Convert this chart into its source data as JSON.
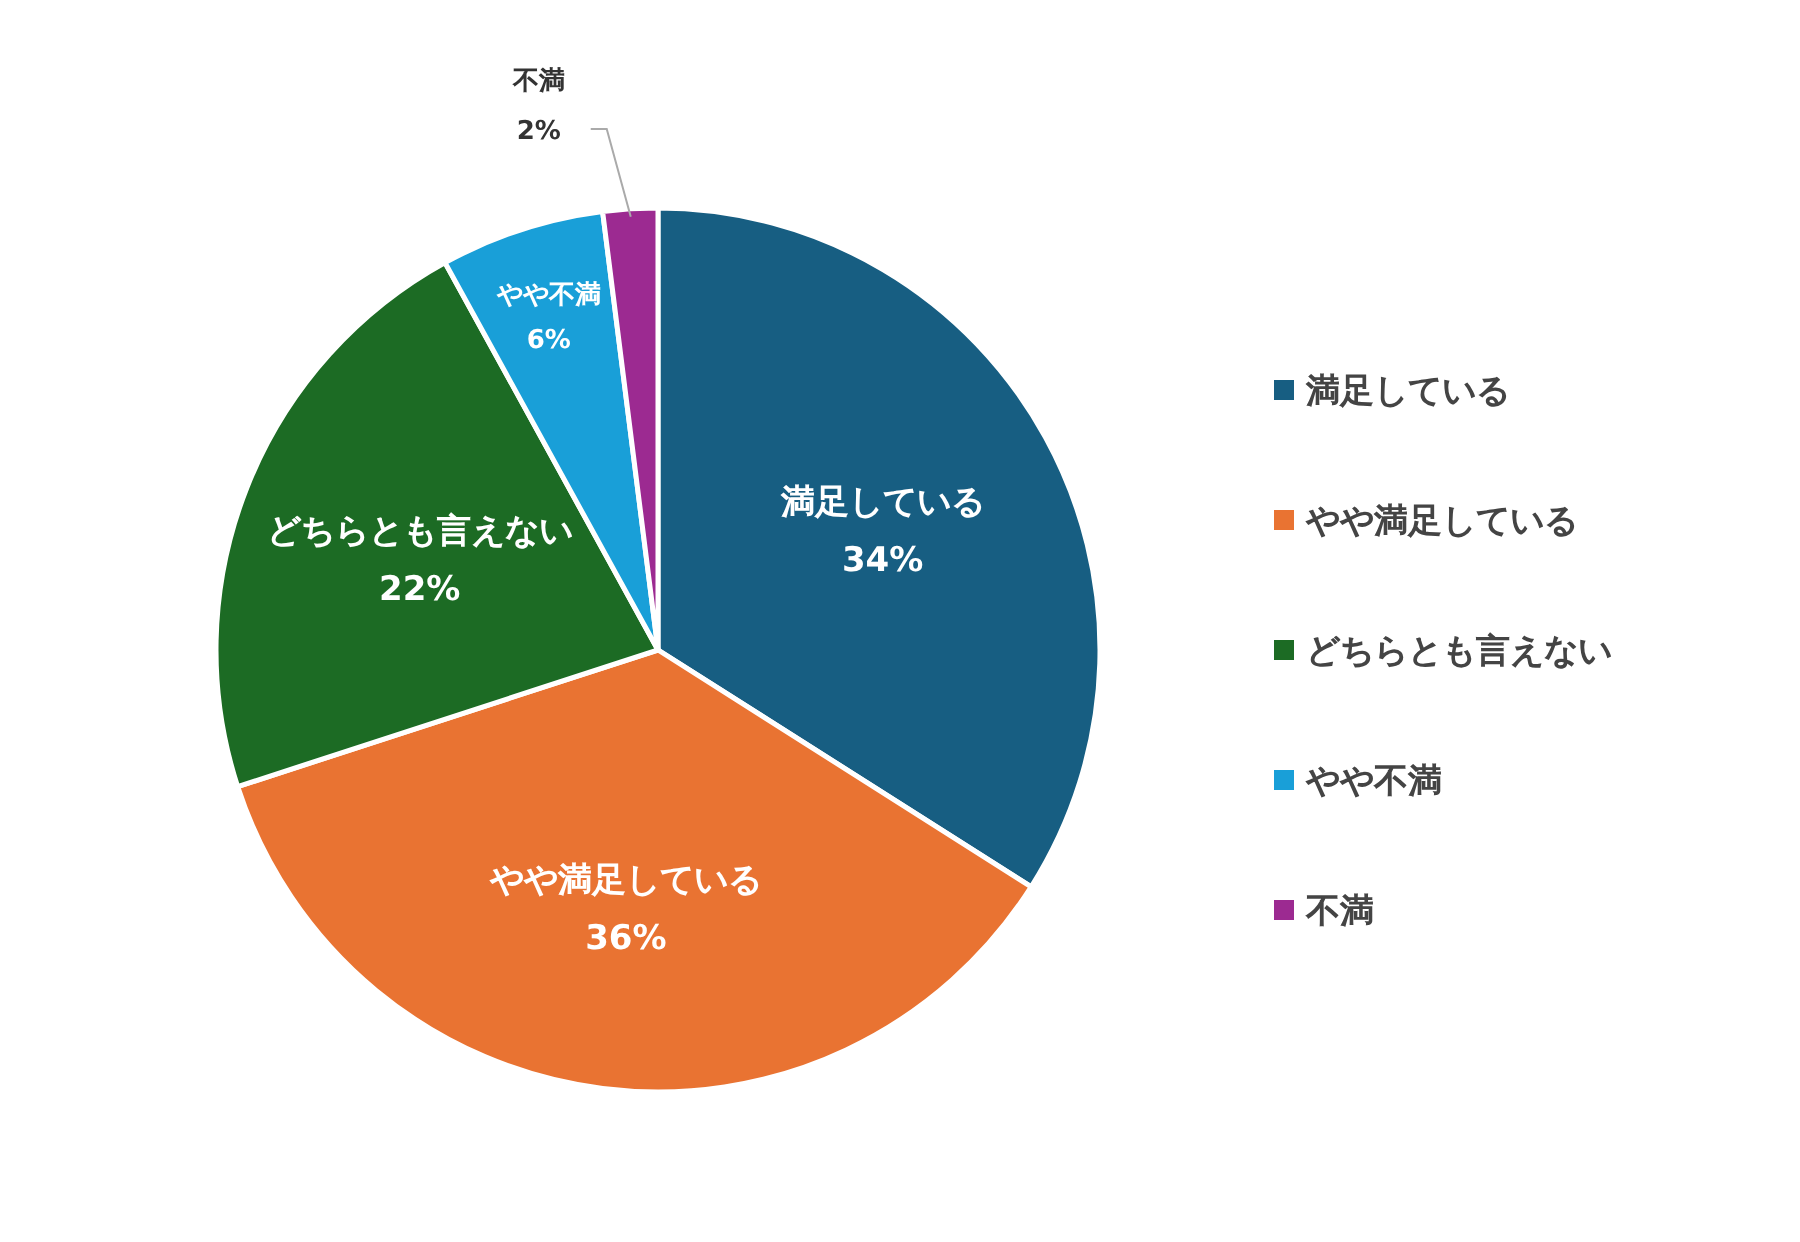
{
  "chart_data": {
    "type": "pie",
    "categories": [
      "満足している",
      "やや満足している",
      "どちらとも言えない",
      "やや不満",
      "不満"
    ],
    "values": [
      34,
      36,
      22,
      6,
      2
    ],
    "colors": [
      "#175e82",
      "#e97332",
      "#1c6b24",
      "#199fd8",
      "#9c2a91"
    ],
    "value_labels": [
      "34%",
      "36%",
      "22%",
      "6%",
      "2%"
    ],
    "legend": "right"
  }
}
